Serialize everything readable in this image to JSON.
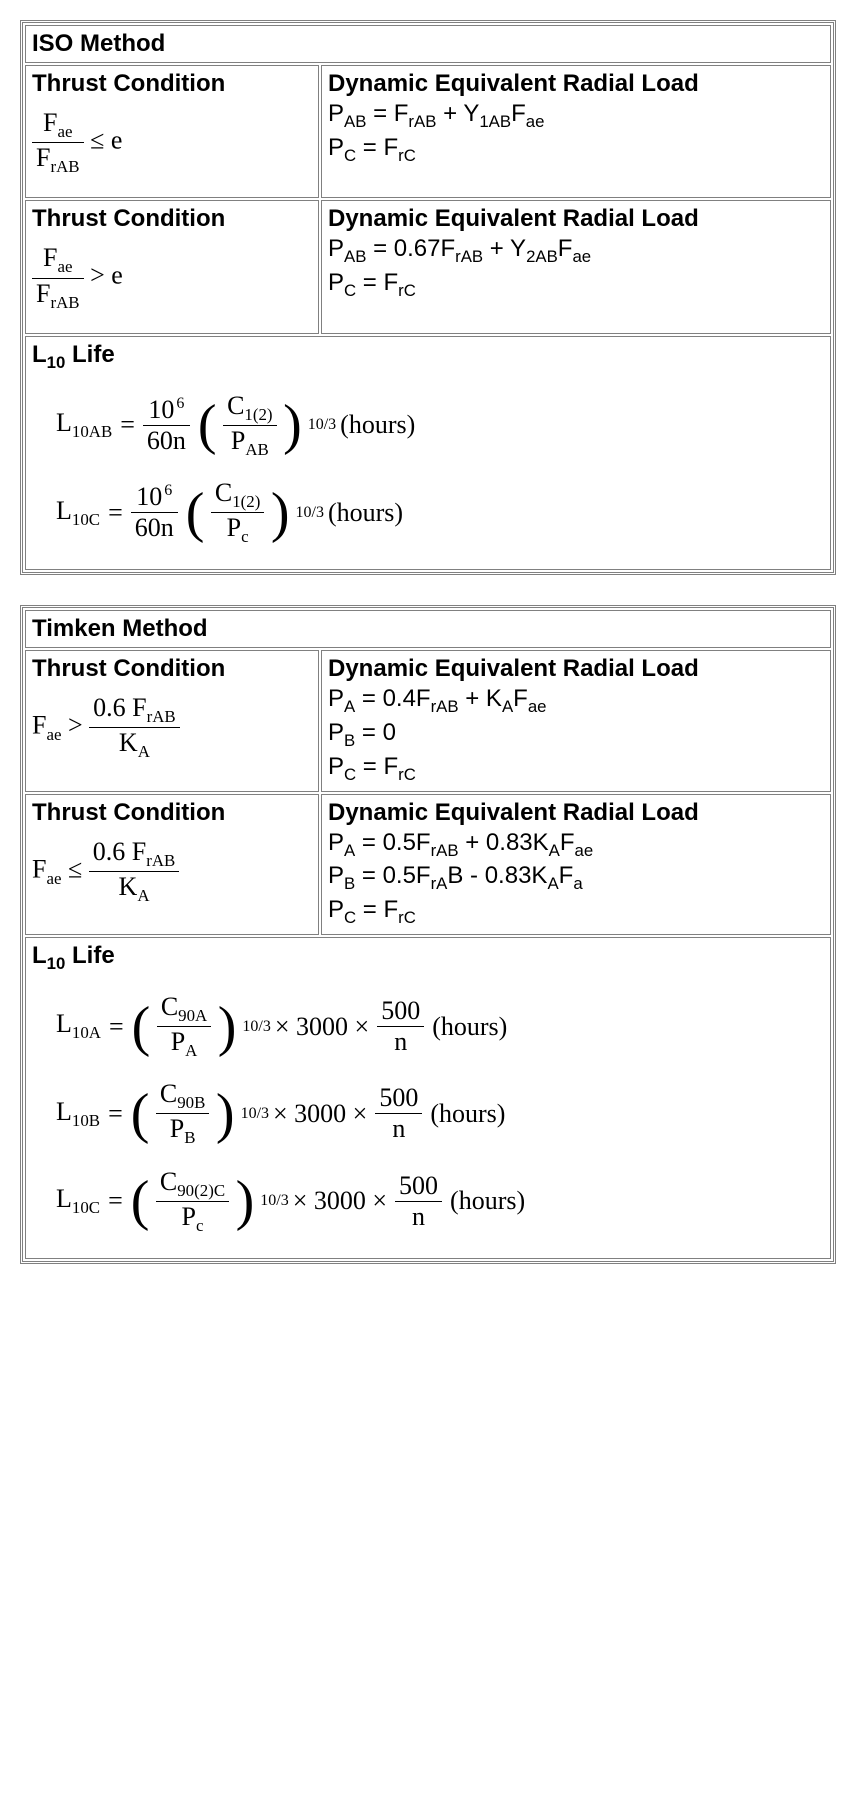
{
  "iso": {
    "title": "ISO Method",
    "row1": {
      "thrust_heading": "Thrust Condition",
      "thrust_lhs_num": "F",
      "thrust_lhs_num_sub": "ae",
      "thrust_lhs_den": "F",
      "thrust_lhs_den_sub": "rAB",
      "thrust_op": "≤ e",
      "load_heading": "Dynamic Equivalent Radial Load",
      "eq1_pre": "P",
      "eq1_sub": "AB",
      "eq1_mid": " = F",
      "eq1_mid_sub": "rAB",
      "eq1_plus": " + Y",
      "eq1_y_sub": "1AB",
      "eq1_f": "F",
      "eq1_f_sub": "ae",
      "eq2_pre": "P",
      "eq2_sub": "C",
      "eq2_mid": " = F",
      "eq2_mid_sub": "rC"
    },
    "row2": {
      "thrust_heading": "Thrust Condition",
      "thrust_lhs_num": "F",
      "thrust_lhs_num_sub": "ae",
      "thrust_lhs_den": "F",
      "thrust_lhs_den_sub": "rAB",
      "thrust_op": "> e",
      "load_heading": "Dynamic Equivalent Radial Load",
      "eq1_pre": "P",
      "eq1_sub": "AB",
      "eq1_mid": " = 0.67F",
      "eq1_mid_sub": "rAB",
      "eq1_plus": " + Y",
      "eq1_y_sub": "2AB",
      "eq1_f": "F",
      "eq1_f_sub": "ae",
      "eq2_pre": "P",
      "eq2_sub": "C",
      "eq2_mid": " = F",
      "eq2_mid_sub": "rC"
    },
    "l10": {
      "heading_pre": "L",
      "heading_sub": "10",
      "heading_post": " Life",
      "eqA_lhs": "L",
      "eqA_lhs_sub": "10AB",
      "eqA_frac1_num": "10",
      "eqA_frac1_num_pow": "6",
      "eqA_frac1_den": "60n",
      "eqA_paren_num": "C",
      "eqA_paren_num_sub": "1(2)",
      "eqA_paren_den": "P",
      "eqA_paren_den_sub": "AB",
      "eqA_pow": "10/3",
      "eqA_hours": "(hours)",
      "eqC_lhs": "L",
      "eqC_lhs_sub": "10C",
      "eqC_frac1_num": "10",
      "eqC_frac1_num_pow": "6",
      "eqC_frac1_den": "60n",
      "eqC_paren_num": "C",
      "eqC_paren_num_sub": "1(2)",
      "eqC_paren_den": "P",
      "eqC_paren_den_sub": "c",
      "eqC_pow": "10/3",
      "eqC_hours": "(hours)"
    }
  },
  "timken": {
    "title": "Timken Method",
    "row1": {
      "thrust_heading": "Thrust Condition",
      "thrust_lhs": "F",
      "thrust_lhs_sub": "ae",
      "thrust_op": " > ",
      "thrust_frac_num": "0.6 F",
      "thrust_frac_num_sub": "rAB",
      "thrust_frac_den": "K",
      "thrust_frac_den_sub": "A",
      "load_heading": "Dynamic Equivalent Radial Load",
      "eqA_pre": "P",
      "eqA_sub": "A",
      "eqA_mid": " = 0.4F",
      "eqA_mid_sub": "rAB",
      "eqA_plus": " + K",
      "eqA_k_sub": "A",
      "eqA_f": "F",
      "eqA_f_sub": "ae",
      "eqB_pre": "P",
      "eqB_sub": "B",
      "eqB_mid": " = 0",
      "eqC_pre": "P",
      "eqC_sub": "C",
      "eqC_mid": " = F",
      "eqC_mid_sub": "rC"
    },
    "row2": {
      "thrust_heading": "Thrust Condition",
      "thrust_lhs": "F",
      "thrust_lhs_sub": "ae",
      "thrust_op": " ≤ ",
      "thrust_frac_num": "0.6 F",
      "thrust_frac_num_sub": "rAB",
      "thrust_frac_den": "K",
      "thrust_frac_den_sub": "A",
      "load_heading": "Dynamic Equivalent Radial Load",
      "eqA_pre": "P",
      "eqA_sub": "A",
      "eqA_mid": " = 0.5F",
      "eqA_mid_sub": "rAB",
      "eqA_plus": " + 0.83K",
      "eqA_k_sub": "A",
      "eqA_f": "F",
      "eqA_f_sub": "ae",
      "eqB_pre": "P",
      "eqB_sub": "B",
      "eqB_mid": " = 0.5F",
      "eqB_mid_sub": "rA",
      "eqB_post": "B - 0.83K",
      "eqB_k_sub": "A",
      "eqB_f": "F",
      "eqB_f_sub": "a",
      "eqC_pre": "P",
      "eqC_sub": "C",
      "eqC_mid": " = F",
      "eqC_mid_sub": "rC"
    },
    "l10": {
      "heading_pre": "L",
      "heading_sub": "10",
      "heading_post": " Life",
      "eqA_lhs": "L",
      "eqA_lhs_sub": "10A",
      "eqA_paren_num": "C",
      "eqA_paren_num_sub": "90A",
      "eqA_paren_den": "P",
      "eqA_paren_den_sub": "A",
      "eqA_pow": "10/3",
      "eqA_mult1": " × 3000 × ",
      "eqA_frac2_num": "500",
      "eqA_frac2_den": "n",
      "eqA_hours": "(hours)",
      "eqB_lhs": "L",
      "eqB_lhs_sub": "10B",
      "eqB_paren_num": "C",
      "eqB_paren_num_sub": "90B",
      "eqB_paren_den": "P",
      "eqB_paren_den_sub": "B",
      "eqB_pow": "10/3",
      "eqB_mult1": " × 3000 × ",
      "eqB_frac2_num": "500",
      "eqB_frac2_den": "n",
      "eqB_hours": "(hours)",
      "eqC_lhs": "L",
      "eqC_lhs_sub": "10C",
      "eqC_paren_num": "C",
      "eqC_paren_num_sub": "90(2)C",
      "eqC_paren_den": "P",
      "eqC_paren_den_sub": "c",
      "eqC_pow": "10/3",
      "eqC_mult1": " × 3000 × ",
      "eqC_frac2_num": "500",
      "eqC_frac2_den": "n",
      "eqC_hours": "(hours)"
    }
  }
}
